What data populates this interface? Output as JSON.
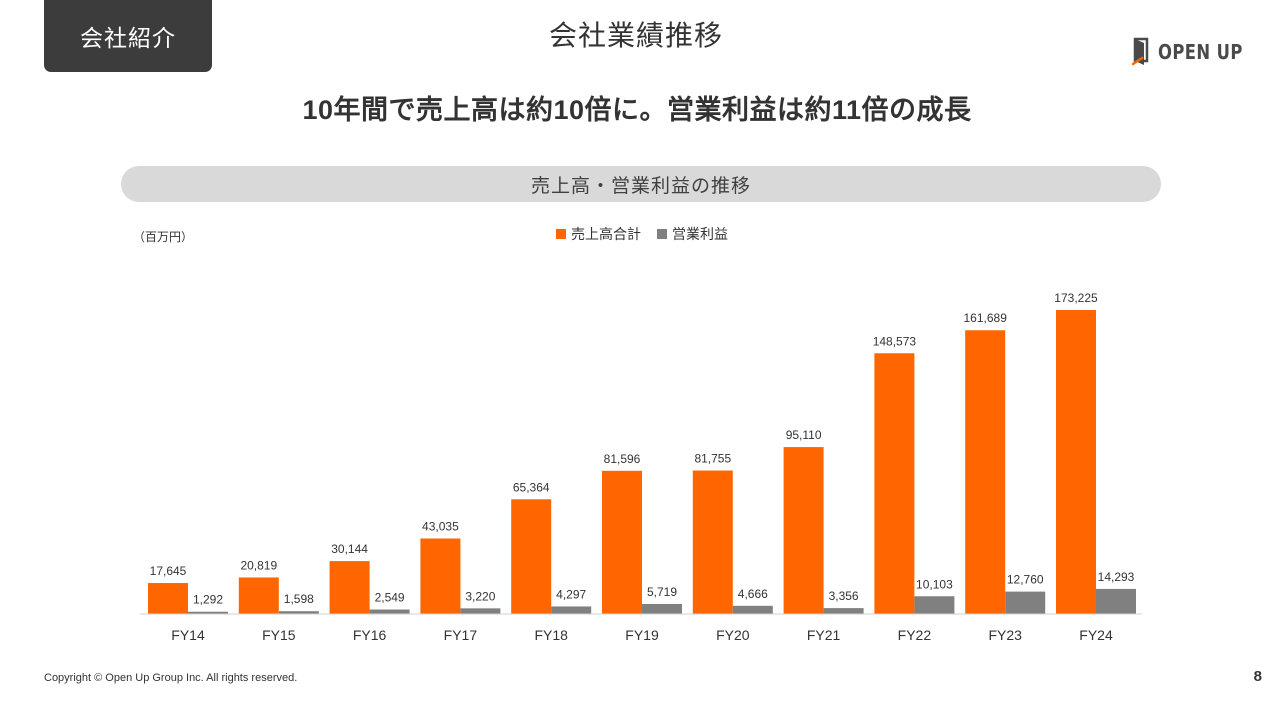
{
  "header": {
    "section_tag": "会社紹介",
    "page_title": "会社業績推移",
    "logo_text": "OPEN UP"
  },
  "headline": "10年間で売上高は約10倍に。営業利益は約11倍の成長",
  "chart_banner": "売上高・営業利益の推移",
  "footer": {
    "copyright": "Copyright © Open Up Group Inc. All rights reserved.",
    "page_number": "8"
  },
  "colors": {
    "sales": "#ff6600",
    "profit": "#808080"
  },
  "chart_data": {
    "type": "bar",
    "title": "売上高・営業利益の推移",
    "unit_label": "（百万円）",
    "categories": [
      "FY14",
      "FY15",
      "FY16",
      "FY17",
      "FY18",
      "FY19",
      "FY20",
      "FY21",
      "FY22",
      "FY23",
      "FY24"
    ],
    "series": [
      {
        "name": "売上高合計",
        "values": [
          17645,
          20819,
          30144,
          43035,
          65364,
          81596,
          81755,
          95110,
          148573,
          161689,
          173225
        ],
        "labels": [
          "17,645",
          "20,819",
          "30,144",
          "43,035",
          "65,364",
          "81,596",
          "81,755",
          "95,110",
          "148,573",
          "161,689",
          "173,225"
        ]
      },
      {
        "name": "営業利益",
        "values": [
          1292,
          1598,
          2549,
          3220,
          4297,
          5719,
          4666,
          3356,
          10103,
          12760,
          14293
        ],
        "labels": [
          "1,292",
          "1,598",
          "2,549",
          "3,220",
          "4,297",
          "5,719",
          "4,666",
          "3,356",
          "10,103",
          "12,760",
          "14,293"
        ]
      }
    ],
    "ylim": [
      0,
      173225
    ],
    "grid": false,
    "legend_position": "top-center"
  }
}
